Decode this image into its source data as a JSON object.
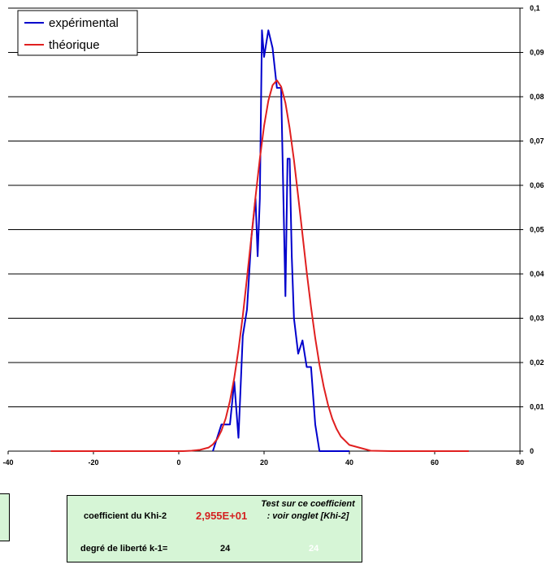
{
  "chart_data": {
    "type": "line",
    "title": "",
    "xlabel": "",
    "ylabel": "",
    "xlim": [
      -40,
      80
    ],
    "ylim": [
      0,
      0.1
    ],
    "x_ticks": [
      "-40",
      "-20",
      "0",
      "20",
      "40",
      "60",
      "80"
    ],
    "y_ticks": [
      "0",
      "0,01",
      "0,02",
      "0,03",
      "0,04",
      "0,05",
      "0,06",
      "0,07",
      "0,08",
      "0,09",
      "0,1"
    ],
    "grid": "horizontal",
    "y_axis_position": "right",
    "legend_position": "top-left",
    "series": [
      {
        "name": "expérimental",
        "color": "#0000cc",
        "x": [
          8,
          10,
          12,
          13,
          14,
          15,
          16,
          17,
          18,
          18.5,
          19,
          19.5,
          20,
          20.5,
          21,
          22,
          23,
          24,
          25,
          25.5,
          26,
          26.5,
          27,
          28,
          29,
          30,
          31,
          32,
          33,
          34,
          35,
          40
        ],
        "y": [
          0,
          0.006,
          0.006,
          0.0157,
          0.003,
          0.026,
          0.032,
          0.048,
          0.057,
          0.044,
          0.057,
          0.095,
          0.089,
          0.092,
          0.095,
          0.091,
          0.082,
          0.082,
          0.035,
          0.066,
          0.066,
          0.044,
          0.03,
          0.022,
          0.025,
          0.019,
          0.019,
          0.006,
          0,
          0,
          0,
          0
        ]
      },
      {
        "name": "théorique",
        "color": "#e02020",
        "x": [
          -30,
          -20,
          -10,
          0,
          1,
          3,
          5,
          7,
          8,
          9,
          10,
          11,
          12,
          13,
          14,
          15,
          16,
          17,
          18,
          19,
          20,
          21,
          22,
          23,
          24,
          25,
          26,
          27,
          28,
          29,
          30,
          31,
          32,
          33,
          34,
          35,
          36,
          37,
          38,
          40,
          45,
          50,
          55,
          60,
          68
        ],
        "y": [
          0,
          0,
          0,
          0,
          0,
          0.0001,
          0.0003,
          0.0008,
          0.0015,
          0.0027,
          0.0046,
          0.0074,
          0.0113,
          0.0165,
          0.0229,
          0.0305,
          0.0391,
          0.0482,
          0.0574,
          0.066,
          0.0734,
          0.0791,
          0.0826,
          0.0837,
          0.0823,
          0.0786,
          0.0729,
          0.0657,
          0.0575,
          0.0489,
          0.0404,
          0.0325,
          0.0255,
          0.0195,
          0.0145,
          0.0104,
          0.0073,
          0.005,
          0.0033,
          0.0014,
          0.0001,
          0,
          0,
          0,
          0
        ]
      }
    ]
  },
  "stats": {
    "khi2_label": "coefficient du Khi-2",
    "khi2_value": "2,955E+01",
    "test_note": "Test sur ce coefficient : voir onglet [Khi-2]",
    "dof_label": "degré de liberté k-1=",
    "dof_value": "24",
    "dof_value_ghost": "24"
  }
}
